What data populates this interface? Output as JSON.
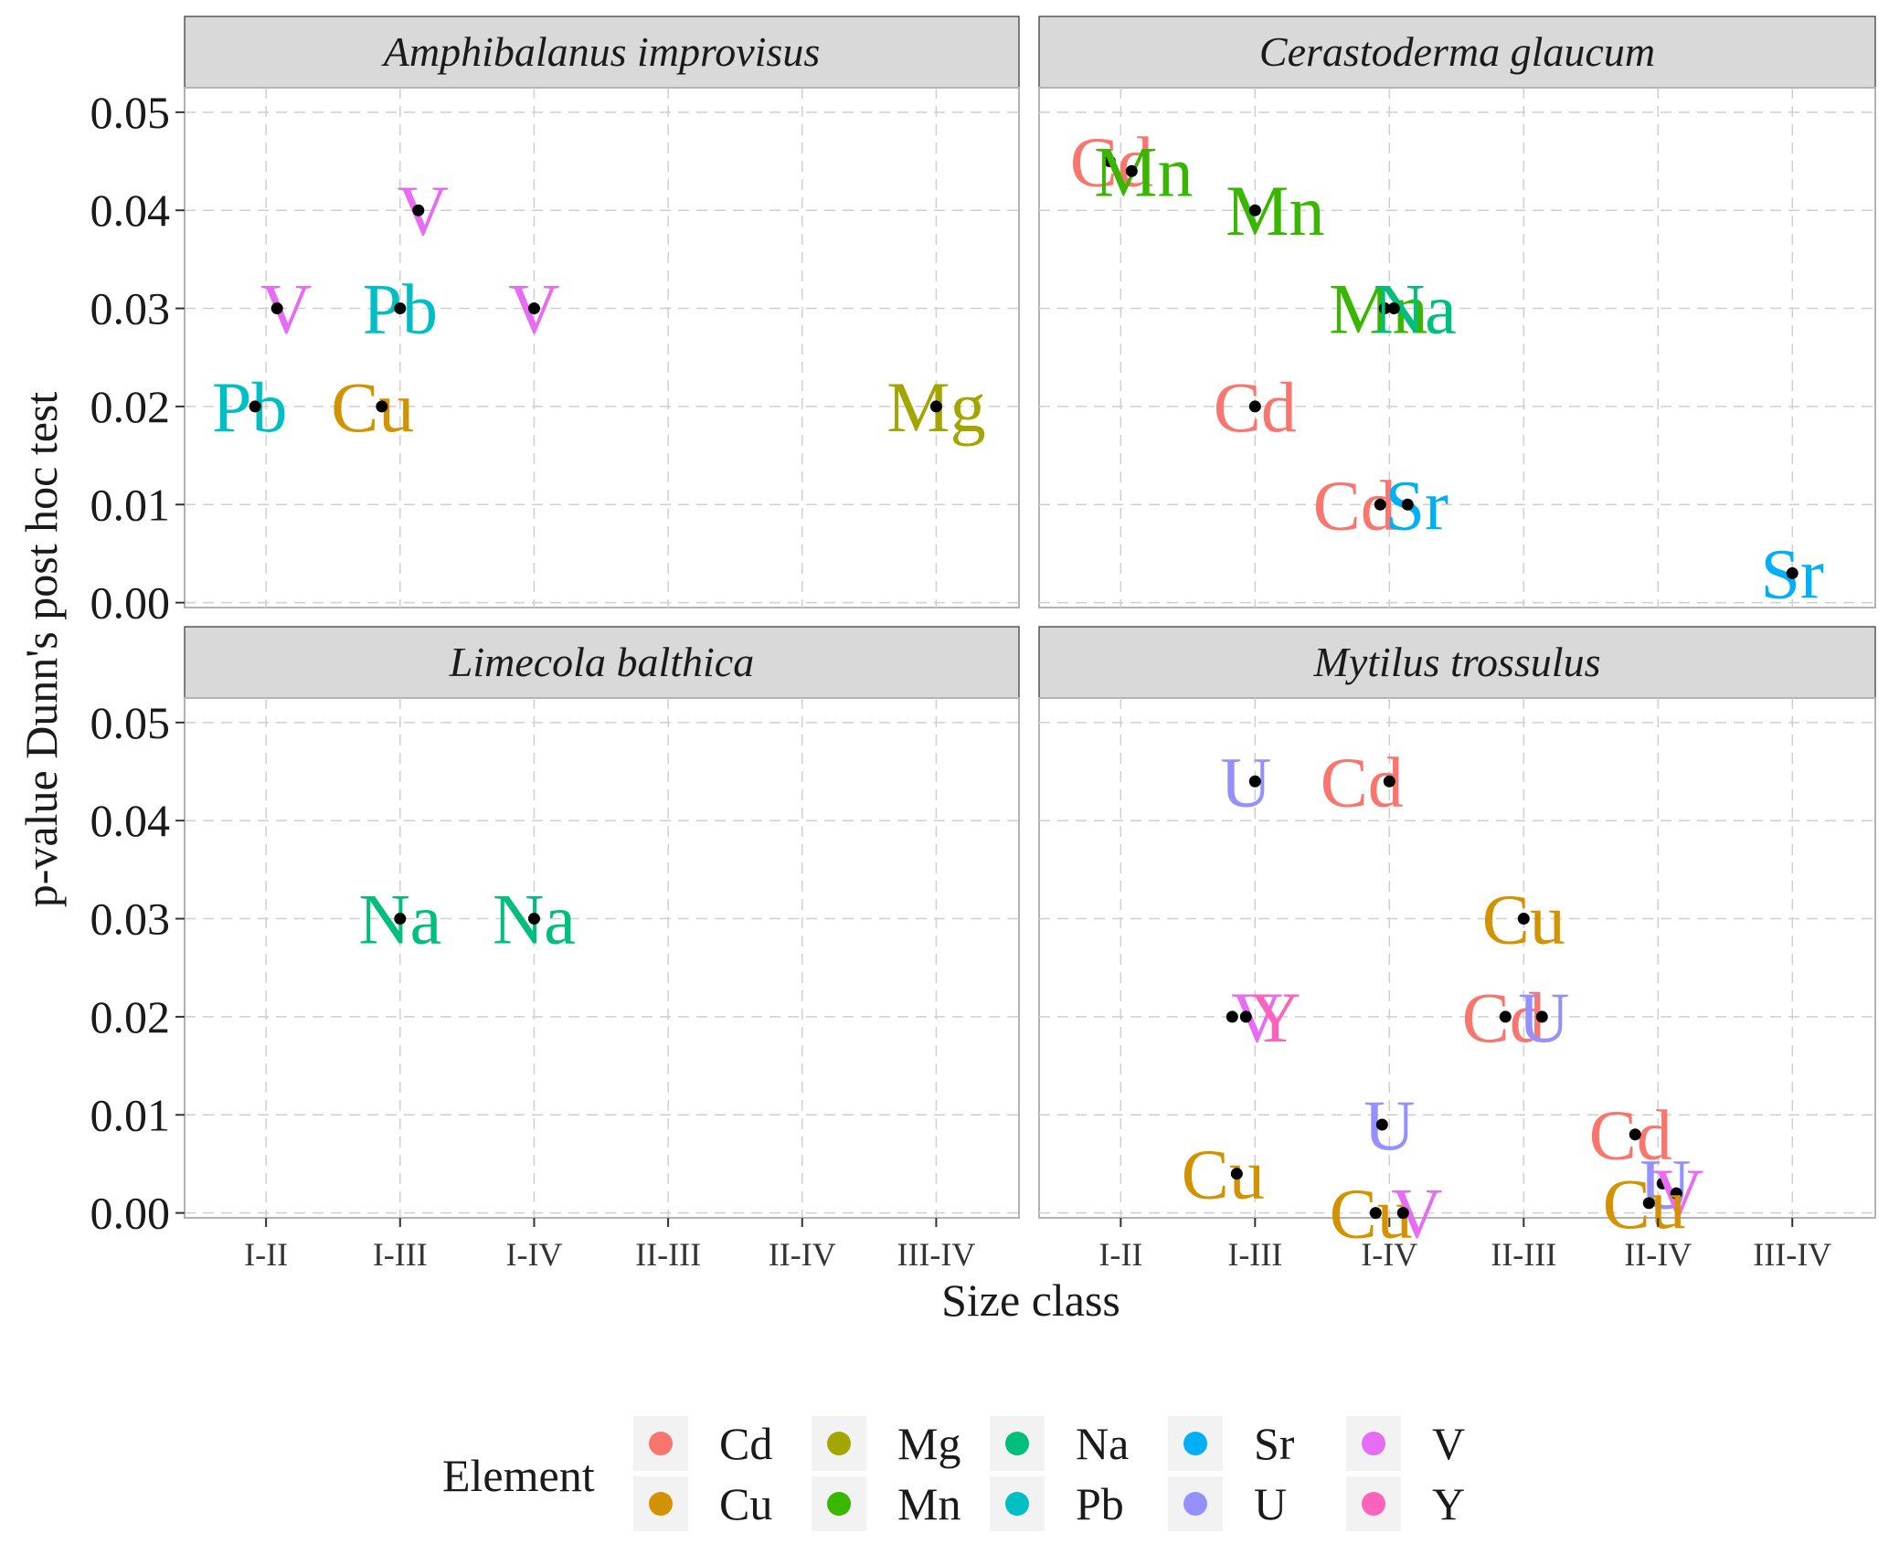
{
  "chart_data": {
    "type": "scatter",
    "ylabel": "p-value Dunn's post hoc test",
    "xlabel": "Size class",
    "categories": [
      "I-II",
      "I-III",
      "I-IV",
      "II-III",
      "II-IV",
      "III-IV"
    ],
    "y_ticks": [
      "0.00",
      "0.01",
      "0.02",
      "0.03",
      "0.04",
      "0.05"
    ],
    "ylim": [
      -0.0005,
      0.0525
    ],
    "grid": true,
    "legend": {
      "title": "Element",
      "position": "bottom",
      "entries": [
        {
          "name": "Cd",
          "color": "#F8766D"
        },
        {
          "name": "Cu",
          "color": "#D39200"
        },
        {
          "name": "Mg",
          "color": "#A3A500"
        },
        {
          "name": "Mn",
          "color": "#39B600"
        },
        {
          "name": "Na",
          "color": "#00BF7D"
        },
        {
          "name": "Pb",
          "color": "#00BFC4"
        },
        {
          "name": "Sr",
          "color": "#00B0F6"
        },
        {
          "name": "U",
          "color": "#9590FF"
        },
        {
          "name": "V",
          "color": "#E76BF3"
        },
        {
          "name": "Y",
          "color": "#FF62BC"
        }
      ]
    },
    "panels": [
      {
        "title": "Amphibalanus improvisus",
        "points": [
          {
            "element": "V",
            "x": "I-II",
            "y": 0.03
          },
          {
            "element": "Pb",
            "x": "I-II",
            "y": 0.02
          },
          {
            "element": "Pb",
            "x": "I-III",
            "y": 0.03
          },
          {
            "element": "Cu",
            "x": "I-III",
            "y": 0.02
          },
          {
            "element": "V",
            "x": "I-III",
            "y": 0.04
          },
          {
            "element": "V",
            "x": "I-IV",
            "y": 0.03
          },
          {
            "element": "Mg",
            "x": "III-IV",
            "y": 0.02
          }
        ]
      },
      {
        "title": "Cerastoderma glaucum",
        "points": [
          {
            "element": "Cd",
            "x": "I-II",
            "y": 0.045
          },
          {
            "element": "Mn",
            "x": "I-II",
            "y": 0.044
          },
          {
            "element": "Mn",
            "x": "I-III",
            "y": 0.04
          },
          {
            "element": "Cd",
            "x": "I-III",
            "y": 0.02
          },
          {
            "element": "Mn",
            "x": "I-IV",
            "y": 0.03
          },
          {
            "element": "Na",
            "x": "I-IV",
            "y": 0.03
          },
          {
            "element": "Cd",
            "x": "I-IV",
            "y": 0.01
          },
          {
            "element": "Sr",
            "x": "I-IV",
            "y": 0.01
          },
          {
            "element": "Sr",
            "x": "III-IV",
            "y": 0.003
          }
        ]
      },
      {
        "title": "Limecola balthica",
        "points": [
          {
            "element": "Na",
            "x": "I-III",
            "y": 0.03
          },
          {
            "element": "Na",
            "x": "I-IV",
            "y": 0.03
          }
        ]
      },
      {
        "title": "Mytilus trossulus",
        "points": [
          {
            "element": "U",
            "x": "I-III",
            "y": 0.044
          },
          {
            "element": "Cd",
            "x": "I-IV",
            "y": 0.044
          },
          {
            "element": "Cu",
            "x": "II-III",
            "y": 0.03
          },
          {
            "element": "V",
            "x": "I-III",
            "y": 0.02
          },
          {
            "element": "Y",
            "x": "I-III",
            "y": 0.02
          },
          {
            "element": "Cd",
            "x": "II-III",
            "y": 0.02
          },
          {
            "element": "U",
            "x": "II-III",
            "y": 0.02
          },
          {
            "element": "U",
            "x": "I-IV",
            "y": 0.009
          },
          {
            "element": "Cu",
            "x": "I-III",
            "y": 0.004
          },
          {
            "element": "Cu",
            "x": "I-IV",
            "y": 0.0
          },
          {
            "element": "V",
            "x": "I-IV",
            "y": 0.0
          },
          {
            "element": "Cd",
            "x": "II-IV",
            "y": 0.008
          },
          {
            "element": "U",
            "x": "II-IV",
            "y": 0.003
          },
          {
            "element": "V",
            "x": "II-IV",
            "y": 0.002
          },
          {
            "element": "Cu",
            "x": "II-IV",
            "y": 0.001
          }
        ]
      }
    ]
  }
}
